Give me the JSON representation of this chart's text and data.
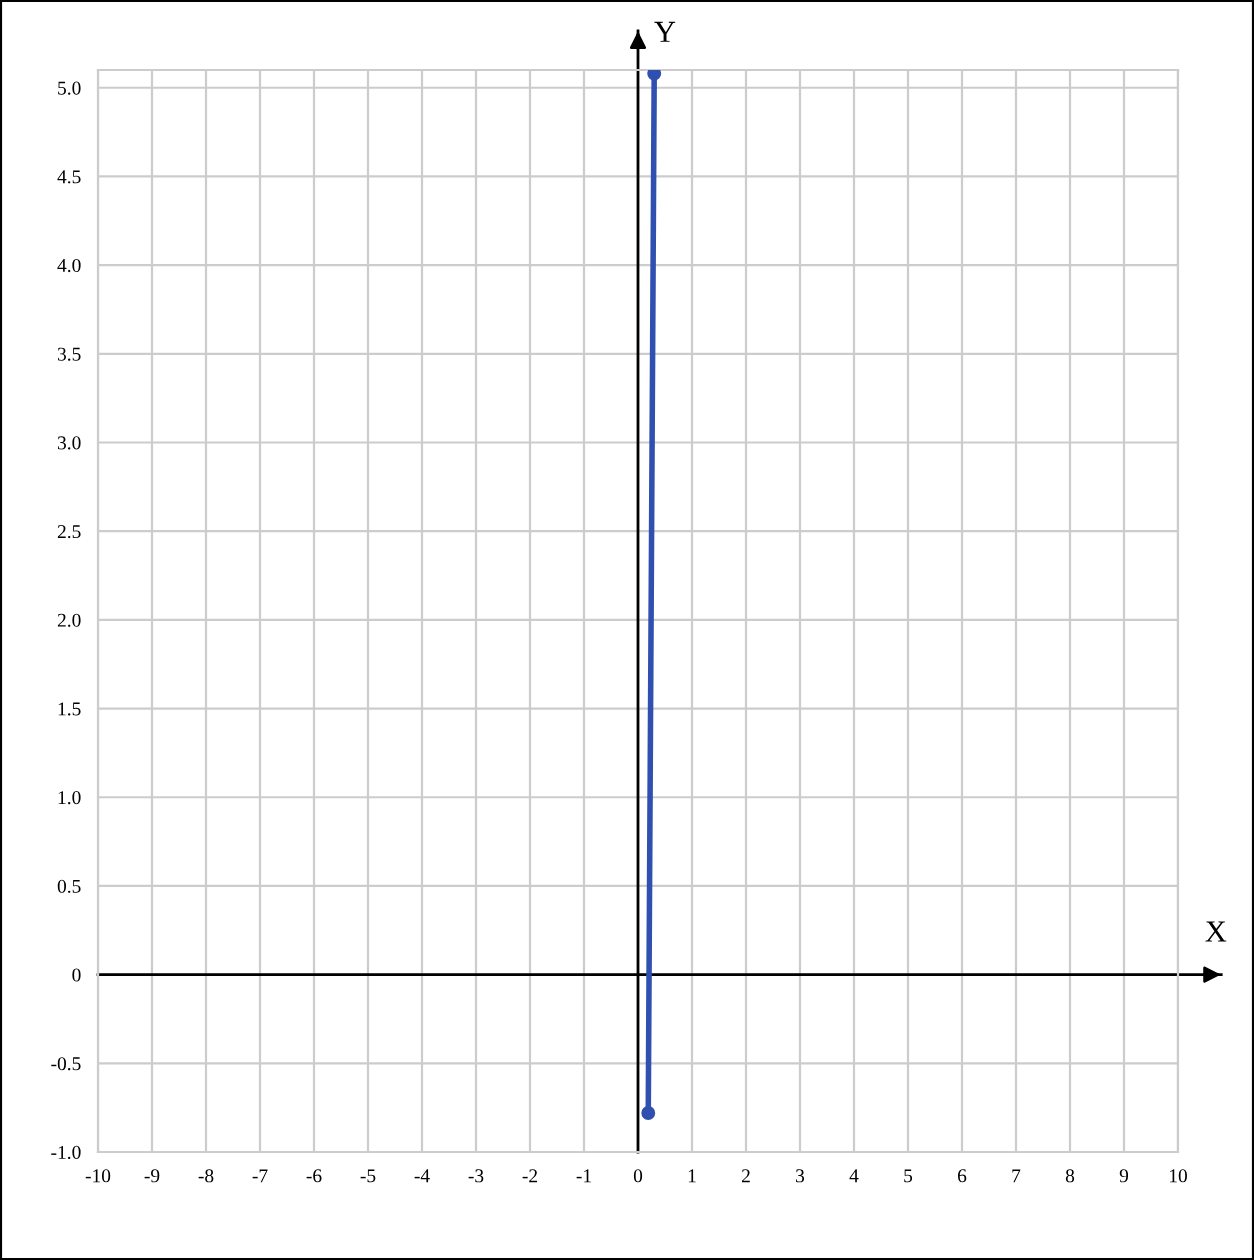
{
  "chart_data": {
    "type": "line",
    "xlabel": "X",
    "ylabel": "Y",
    "x": [
      0.19,
      0.3
    ],
    "series": [
      {
        "color": "#3050b0",
        "values": [
          -0.78,
          5.08
        ]
      }
    ],
    "marker": "circle",
    "line_style": "solid",
    "grid": true,
    "xlim": [
      -10,
      10
    ],
    "ylim": [
      -1,
      5.1
    ],
    "xticks": [
      -10,
      -9,
      -8,
      -7,
      -6,
      -5,
      -4,
      -3,
      -2,
      -1,
      0,
      1,
      2,
      3,
      4,
      5,
      6,
      7,
      8,
      9,
      10
    ],
    "yticks": [
      {
        "value": -1,
        "label": "-1.0"
      },
      {
        "value": -0.5,
        "label": "-0.5"
      },
      {
        "value": 0,
        "label": "0"
      },
      {
        "value": 0.5,
        "label": "0.5"
      },
      {
        "value": 1,
        "label": "1.0"
      },
      {
        "value": 1.5,
        "label": "1.5"
      },
      {
        "value": 2,
        "label": "2.0"
      },
      {
        "value": 2.5,
        "label": "2.5"
      },
      {
        "value": 3,
        "label": "3.0"
      },
      {
        "value": 3.5,
        "label": "3.5"
      },
      {
        "value": 4,
        "label": "4.0"
      },
      {
        "value": 4.5,
        "label": "4.5"
      },
      {
        "value": 5,
        "label": "5.0"
      }
    ]
  }
}
